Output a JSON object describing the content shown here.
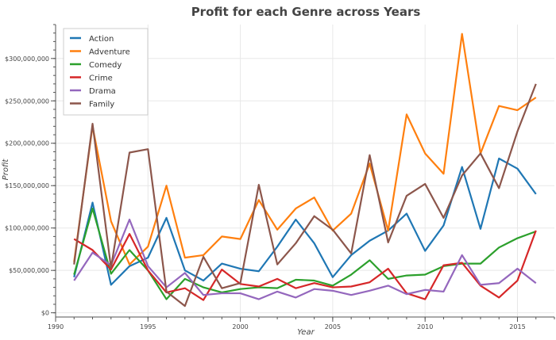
{
  "chart_data": {
    "type": "line",
    "title": "Profit for each Genre across Years",
    "xlabel": "Year",
    "ylabel": "Profit",
    "x": [
      1991,
      1992,
      1993,
      1994,
      1995,
      1996,
      1997,
      1998,
      1999,
      2000,
      2001,
      2002,
      2003,
      2004,
      2005,
      2006,
      2007,
      2008,
      2009,
      2010,
      2011,
      2012,
      2013,
      2014,
      2015,
      2016
    ],
    "xlim": [
      1990,
      2017
    ],
    "ylim": [
      -5000000,
      340000000
    ],
    "x_ticks": [
      1990,
      1995,
      2000,
      2005,
      2010,
      2015
    ],
    "x_tick_labels": [
      "1990",
      "1995",
      "2000",
      "2005",
      "2010",
      "2015"
    ],
    "y_ticks": [
      0,
      50000000,
      100000000,
      150000000,
      200000000,
      250000000,
      300000000
    ],
    "y_tick_labels": [
      "$0",
      "$50,000,000",
      "$100,000,000",
      "$150,000,000",
      "$200,000,000",
      "$250,000,000",
      "$300,000,000"
    ],
    "grid": true,
    "legend_position": "top-left",
    "series": [
      {
        "name": "Action",
        "color": "#1f77b4",
        "values": [
          42000000,
          130000000,
          33000000,
          55000000,
          65000000,
          112000000,
          50000000,
          38000000,
          58000000,
          52000000,
          49000000,
          78000000,
          110000000,
          82000000,
          42000000,
          68000000,
          85000000,
          97000000,
          117000000,
          73000000,
          103000000,
          172000000,
          99000000,
          182000000,
          170000000,
          140000000
        ]
      },
      {
        "name": "Adventure",
        "color": "#ff7f0e",
        "values": [
          60000000,
          220000000,
          108000000,
          57000000,
          78000000,
          150000000,
          65000000,
          68000000,
          90000000,
          87000000,
          133000000,
          98000000,
          123000000,
          136000000,
          97000000,
          117000000,
          176000000,
          97000000,
          234000000,
          188000000,
          164000000,
          329000000,
          188000000,
          244000000,
          239000000,
          254000000
        ]
      },
      {
        "name": "Comedy",
        "color": "#2ca02c",
        "values": [
          45000000,
          123000000,
          46000000,
          74000000,
          50000000,
          16000000,
          40000000,
          30000000,
          24000000,
          28000000,
          30000000,
          29000000,
          39000000,
          38000000,
          32000000,
          45000000,
          62000000,
          40000000,
          44000000,
          45000000,
          55000000,
          58000000,
          58000000,
          77000000,
          88000000,
          96000000
        ]
      },
      {
        "name": "Crime",
        "color": "#d62728",
        "values": [
          87000000,
          74000000,
          51000000,
          93000000,
          50000000,
          24000000,
          29000000,
          15000000,
          51000000,
          34000000,
          31000000,
          40000000,
          29000000,
          35000000,
          30000000,
          31000000,
          36000000,
          52000000,
          23000000,
          16000000,
          56000000,
          59000000,
          32000000,
          18000000,
          38000000,
          97000000
        ]
      },
      {
        "name": "Drama",
        "color": "#9467bd",
        "values": [
          38000000,
          71000000,
          56000000,
          110000000,
          55000000,
          30000000,
          47000000,
          21000000,
          23000000,
          23000000,
          16000000,
          25000000,
          18000000,
          28000000,
          26000000,
          21000000,
          26000000,
          32000000,
          22000000,
          27000000,
          25000000,
          68000000,
          33000000,
          35000000,
          52000000,
          35000000
        ]
      },
      {
        "name": "Family",
        "color": "#8c564b",
        "values": [
          57000000,
          223000000,
          53000000,
          189000000,
          193000000,
          25000000,
          8000000,
          66000000,
          29000000,
          35000000,
          151000000,
          57000000,
          82000000,
          114000000,
          98000000,
          70000000,
          186000000,
          83000000,
          138000000,
          152000000,
          112000000,
          162000000,
          188000000,
          147000000,
          214000000,
          270000000
        ]
      }
    ]
  }
}
